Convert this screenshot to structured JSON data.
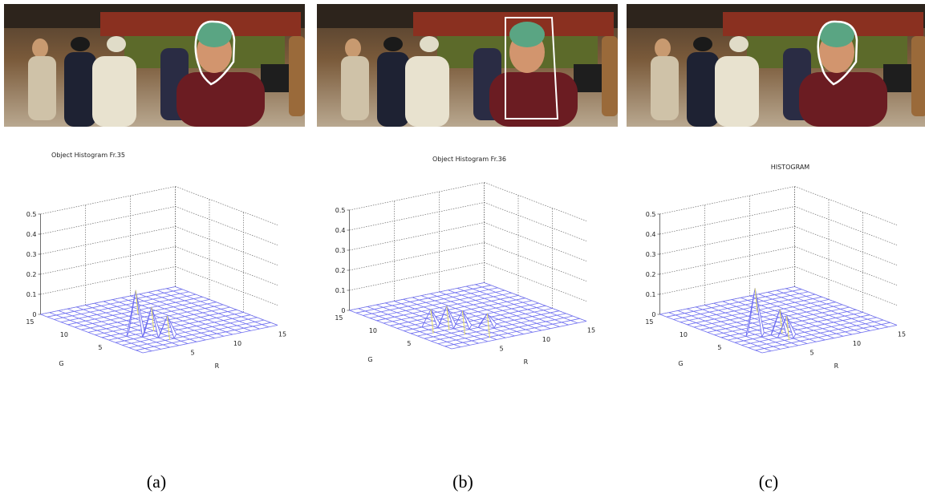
{
  "figure": {
    "panels": [
      {
        "title": "Object Histogram Fr.35",
        "zticks": [
          0,
          0.1,
          0.2,
          0.3,
          0.4,
          0.5
        ],
        "gticks": [
          5,
          10,
          15
        ],
        "rticks": [
          5,
          10,
          15
        ],
        "xlabel": "R",
        "ylabel": "G",
        "caption": "(a)",
        "peaks": [
          {
            "g": 5,
            "r": 3,
            "value": 0.22
          },
          {
            "g": 4,
            "r": 4,
            "value": 0.14
          },
          {
            "g": 3,
            "r": 5,
            "value": 0.1
          }
        ]
      },
      {
        "title": "Object Histogram Fr.36",
        "zticks": [
          0,
          0.1,
          0.2,
          0.3,
          0.4,
          0.5
        ],
        "gticks": [
          5,
          10,
          15
        ],
        "rticks": [
          5,
          10,
          15
        ],
        "xlabel": "R",
        "ylabel": "G",
        "caption": "(b)",
        "peaks": [
          {
            "g": 7,
            "r": 3,
            "value": 0.08
          },
          {
            "g": 6,
            "r": 4,
            "value": 0.1
          },
          {
            "g": 5,
            "r": 5,
            "value": 0.08
          },
          {
            "g": 4,
            "r": 7,
            "value": 0.06
          }
        ]
      },
      {
        "title": "HISTOGRAM",
        "zticks": [
          0,
          0.1,
          0.2,
          0.3,
          0.4,
          0.5
        ],
        "gticks": [
          5,
          10,
          15
        ],
        "rticks": [
          5,
          10,
          15
        ],
        "xlabel": "R",
        "ylabel": "G",
        "caption": "(c)",
        "peaks": [
          {
            "g": 5,
            "r": 3,
            "value": 0.23
          },
          {
            "g": 4,
            "r": 5,
            "value": 0.12
          },
          {
            "g": 3,
            "r": 5,
            "value": 0.1
          }
        ]
      }
    ]
  }
}
